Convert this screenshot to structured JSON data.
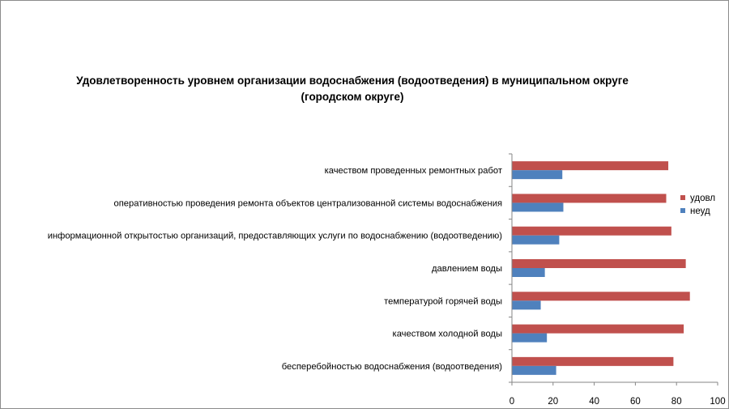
{
  "chart_data": {
    "type": "bar",
    "orientation": "horizontal",
    "title_lines": [
      "Удовлетворенность уровнем организации водоснабжения (водоотведения) в муниципальном округе",
      "(городском округе)"
    ],
    "categories": [
      "качеством проведенных ремонтных работ",
      "оперативностью проведения ремонта объектов централизованной системы водоснабжения",
      "информационной открытостью организаций, предоставляющих услуги по водоснабжению (водоотведению)",
      "давлением воды",
      "температурой горячей воды",
      "качеством холодной воды",
      "бесперебойностью водоснабжения (водоотведения)"
    ],
    "series": [
      {
        "name": "удовл",
        "color": "#c0504d",
        "values": [
          76,
          75,
          77.5,
          84.5,
          86.5,
          83.5,
          78.5
        ]
      },
      {
        "name": "неуд",
        "color": "#4f81bd",
        "values": [
          24.5,
          25,
          23,
          16,
          14,
          17,
          21.5
        ]
      }
    ],
    "xlim": [
      0,
      100
    ],
    "xticks": [
      "0",
      "20",
      "40",
      "60",
      "80",
      "100"
    ],
    "grid": false,
    "legend_position": "right"
  }
}
